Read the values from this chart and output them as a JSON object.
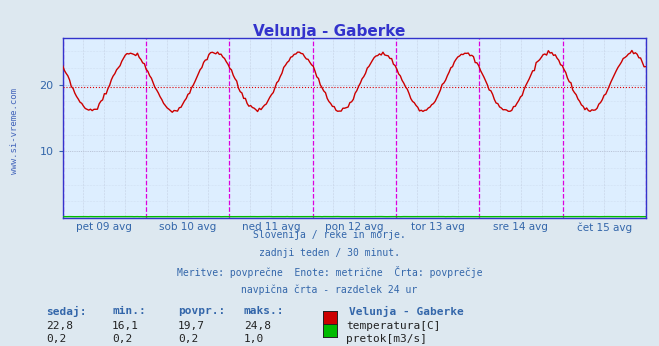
{
  "title": "Velunja - Gaberke",
  "bg_color": "#dde8f0",
  "plot_bg_color": "#ddeeff",
  "grid_color": "#b0b8cc",
  "text_color": "#3366aa",
  "x_ticks": [
    "pet 09 avg",
    "sob 10 avg",
    "ned 11 avg",
    "pon 12 avg",
    "tor 13 avg",
    "sre 14 avg",
    "čet 15 avg"
  ],
  "ylim": [
    0,
    27
  ],
  "yticks": [
    10,
    20
  ],
  "days": 7,
  "points_per_day": 48,
  "temp_min": 16.1,
  "temp_max": 24.8,
  "temp_avg": 19.7,
  "temp_color": "#cc0000",
  "flow_color": "#00bb00",
  "vline_color": "#dd00dd",
  "hline_color": "#dd0000",
  "border_color": "#3333cc",
  "watermark": "www.si-vreme.com",
  "footer_lines": [
    "Slovenija / reke in morje.",
    "zadnji teden / 30 minut.",
    "Meritve: povprečne  Enote: metrične  Črta: povprečje",
    "navpična črta - razdelek 24 ur"
  ],
  "stat_headers": [
    "sedaj:",
    "min.:",
    "povpr.:",
    "maks.:"
  ],
  "stat_temp": [
    "22,8",
    "16,1",
    "19,7",
    "24,8"
  ],
  "stat_flow": [
    "0,2",
    "0,2",
    "0,2",
    "1,0"
  ],
  "legend_title": "Velunja - Gaberke",
  "legend_temp": "temperatura[C]",
  "legend_flow": "pretok[m3/s]"
}
